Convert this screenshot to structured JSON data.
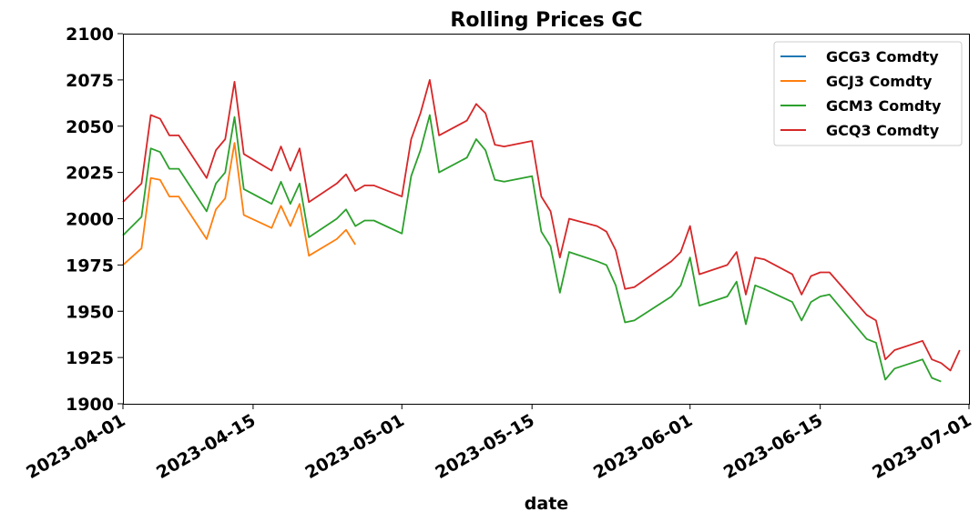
{
  "chart_data": {
    "type": "line",
    "title": "Rolling Prices GC",
    "xlabel": "date",
    "ylabel": "",
    "xlim": [
      "2023-04-01",
      "2023-07-01"
    ],
    "ylim": [
      1900,
      2100
    ],
    "x_ticks": [
      "2023-04-01",
      "2023-04-15",
      "2023-05-01",
      "2023-05-15",
      "2023-06-01",
      "2023-06-15",
      "2023-07-01"
    ],
    "y_ticks": [
      1900,
      1925,
      1950,
      1975,
      2000,
      2025,
      2050,
      2075,
      2100
    ],
    "grid": false,
    "legend_position": "top-right",
    "series": [
      {
        "name": "GCG3 Comdty",
        "color": "#1f77b4",
        "points": []
      },
      {
        "name": "GCJ3 Comdty",
        "color": "#ff7f0e",
        "points": [
          [
            "2023-04-01",
            1975
          ],
          [
            "2023-04-03",
            1984
          ],
          [
            "2023-04-04",
            2022
          ],
          [
            "2023-04-05",
            2021
          ],
          [
            "2023-04-06",
            2012
          ],
          [
            "2023-04-07",
            2012
          ],
          [
            "2023-04-10",
            1989
          ],
          [
            "2023-04-11",
            2005
          ],
          [
            "2023-04-12",
            2011
          ],
          [
            "2023-04-13",
            2041
          ],
          [
            "2023-04-14",
            2002
          ],
          [
            "2023-04-17",
            1995
          ],
          [
            "2023-04-18",
            2007
          ],
          [
            "2023-04-19",
            1996
          ],
          [
            "2023-04-20",
            2008
          ],
          [
            "2023-04-21",
            1980
          ],
          [
            "2023-04-24",
            1989
          ],
          [
            "2023-04-25",
            1994
          ],
          [
            "2023-04-26",
            1986
          ]
        ]
      },
      {
        "name": "GCM3 Comdty",
        "color": "#2ca02c",
        "points": [
          [
            "2023-04-01",
            1991
          ],
          [
            "2023-04-03",
            2001
          ],
          [
            "2023-04-04",
            2038
          ],
          [
            "2023-04-05",
            2036
          ],
          [
            "2023-04-06",
            2027
          ],
          [
            "2023-04-07",
            2027
          ],
          [
            "2023-04-10",
            2004
          ],
          [
            "2023-04-11",
            2019
          ],
          [
            "2023-04-12",
            2025
          ],
          [
            "2023-04-13",
            2055
          ],
          [
            "2023-04-14",
            2016
          ],
          [
            "2023-04-17",
            2008
          ],
          [
            "2023-04-18",
            2020
          ],
          [
            "2023-04-19",
            2008
          ],
          [
            "2023-04-20",
            2019
          ],
          [
            "2023-04-21",
            1990
          ],
          [
            "2023-04-24",
            2000
          ],
          [
            "2023-04-25",
            2005
          ],
          [
            "2023-04-26",
            1996
          ],
          [
            "2023-04-27",
            1999
          ],
          [
            "2023-04-28",
            1999
          ],
          [
            "2023-05-01",
            1992
          ],
          [
            "2023-05-02",
            2023
          ],
          [
            "2023-05-03",
            2037
          ],
          [
            "2023-05-04",
            2056
          ],
          [
            "2023-05-05",
            2025
          ],
          [
            "2023-05-08",
            2033
          ],
          [
            "2023-05-09",
            2043
          ],
          [
            "2023-05-10",
            2037
          ],
          [
            "2023-05-11",
            2021
          ],
          [
            "2023-05-12",
            2020
          ],
          [
            "2023-05-15",
            2023
          ],
          [
            "2023-05-16",
            1993
          ],
          [
            "2023-05-17",
            1985
          ],
          [
            "2023-05-18",
            1960
          ],
          [
            "2023-05-19",
            1982
          ],
          [
            "2023-05-22",
            1977
          ],
          [
            "2023-05-23",
            1975
          ],
          [
            "2023-05-24",
            1964
          ],
          [
            "2023-05-25",
            1944
          ],
          [
            "2023-05-26",
            1945
          ],
          [
            "2023-05-30",
            1958
          ],
          [
            "2023-05-31",
            1964
          ],
          [
            "2023-06-01",
            1979
          ],
          [
            "2023-06-02",
            1953
          ],
          [
            "2023-06-05",
            1958
          ],
          [
            "2023-06-06",
            1966
          ],
          [
            "2023-06-07",
            1943
          ],
          [
            "2023-06-08",
            1964
          ],
          [
            "2023-06-09",
            1962
          ],
          [
            "2023-06-12",
            1955
          ],
          [
            "2023-06-13",
            1945
          ],
          [
            "2023-06-14",
            1955
          ],
          [
            "2023-06-15",
            1958
          ],
          [
            "2023-06-16",
            1959
          ],
          [
            "2023-06-20",
            1935
          ],
          [
            "2023-06-21",
            1933
          ],
          [
            "2023-06-22",
            1913
          ],
          [
            "2023-06-23",
            1919
          ],
          [
            "2023-06-26",
            1924
          ],
          [
            "2023-06-27",
            1914
          ],
          [
            "2023-06-28",
            1912
          ]
        ]
      },
      {
        "name": "GCQ3 Comdty",
        "color": "#d62728",
        "points": [
          [
            "2023-04-01",
            2009
          ],
          [
            "2023-04-03",
            2019
          ],
          [
            "2023-04-04",
            2056
          ],
          [
            "2023-04-05",
            2054
          ],
          [
            "2023-04-06",
            2045
          ],
          [
            "2023-04-07",
            2045
          ],
          [
            "2023-04-10",
            2022
          ],
          [
            "2023-04-11",
            2037
          ],
          [
            "2023-04-12",
            2043
          ],
          [
            "2023-04-13",
            2074
          ],
          [
            "2023-04-14",
            2035
          ],
          [
            "2023-04-17",
            2026
          ],
          [
            "2023-04-18",
            2039
          ],
          [
            "2023-04-19",
            2026
          ],
          [
            "2023-04-20",
            2038
          ],
          [
            "2023-04-21",
            2009
          ],
          [
            "2023-04-24",
            2019
          ],
          [
            "2023-04-25",
            2024
          ],
          [
            "2023-04-26",
            2015
          ],
          [
            "2023-04-27",
            2018
          ],
          [
            "2023-04-28",
            2018
          ],
          [
            "2023-05-01",
            2012
          ],
          [
            "2023-05-02",
            2043
          ],
          [
            "2023-05-03",
            2057
          ],
          [
            "2023-05-04",
            2075
          ],
          [
            "2023-05-05",
            2045
          ],
          [
            "2023-05-08",
            2053
          ],
          [
            "2023-05-09",
            2062
          ],
          [
            "2023-05-10",
            2057
          ],
          [
            "2023-05-11",
            2040
          ],
          [
            "2023-05-12",
            2039
          ],
          [
            "2023-05-15",
            2042
          ],
          [
            "2023-05-16",
            2012
          ],
          [
            "2023-05-17",
            2004
          ],
          [
            "2023-05-18",
            1979
          ],
          [
            "2023-05-19",
            2000
          ],
          [
            "2023-05-22",
            1996
          ],
          [
            "2023-05-23",
            1993
          ],
          [
            "2023-05-24",
            1983
          ],
          [
            "2023-05-25",
            1962
          ],
          [
            "2023-05-26",
            1963
          ],
          [
            "2023-05-30",
            1977
          ],
          [
            "2023-05-31",
            1982
          ],
          [
            "2023-06-01",
            1996
          ],
          [
            "2023-06-02",
            1970
          ],
          [
            "2023-06-05",
            1975
          ],
          [
            "2023-06-06",
            1982
          ],
          [
            "2023-06-07",
            1959
          ],
          [
            "2023-06-08",
            1979
          ],
          [
            "2023-06-09",
            1978
          ],
          [
            "2023-06-12",
            1970
          ],
          [
            "2023-06-13",
            1959
          ],
          [
            "2023-06-14",
            1969
          ],
          [
            "2023-06-15",
            1971
          ],
          [
            "2023-06-16",
            1971
          ],
          [
            "2023-06-20",
            1948
          ],
          [
            "2023-06-21",
            1945
          ],
          [
            "2023-06-22",
            1924
          ],
          [
            "2023-06-23",
            1929
          ],
          [
            "2023-06-26",
            1934
          ],
          [
            "2023-06-27",
            1924
          ],
          [
            "2023-06-28",
            1922
          ],
          [
            "2023-06-29",
            1918
          ],
          [
            "2023-06-30",
            1929
          ]
        ]
      }
    ]
  }
}
